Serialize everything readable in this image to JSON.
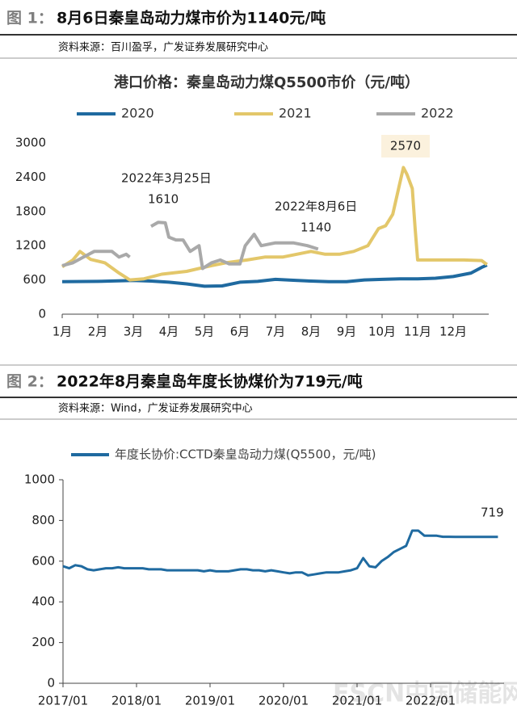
{
  "figures": [
    {
      "label": "图 1：",
      "title": "8月6日秦皇岛动力煤市价为1140元/吨",
      "source": "资料来源：百川盈孚，广发证券发展研究中心"
    },
    {
      "label": "图 2：",
      "title": "2022年8月秦皇岛年度长协煤价为719元/吨",
      "source": "资料来源：Wind，广发证券发展研究中心"
    }
  ],
  "watermark": "ESCN中国储能网",
  "chart_data": [
    {
      "type": "line",
      "title": "港口价格：秦皇岛动力煤Q5500市价（元/吨）",
      "xlim": [
        1,
        13
      ],
      "xticks": [
        {
          "value": 1,
          "label": "1月"
        },
        {
          "value": 2,
          "label": "2月"
        },
        {
          "value": 3,
          "label": "3月"
        },
        {
          "value": 4,
          "label": "4月"
        },
        {
          "value": 5,
          "label": "5月"
        },
        {
          "value": 6,
          "label": "6月"
        },
        {
          "value": 7,
          "label": "7月"
        },
        {
          "value": 8,
          "label": "8月"
        },
        {
          "value": 9,
          "label": "9月"
        },
        {
          "value": 10,
          "label": "10月"
        },
        {
          "value": 11,
          "label": "11月"
        },
        {
          "value": 12,
          "label": "12月"
        }
      ],
      "ylim": [
        0,
        3000
      ],
      "yticks": [
        0,
        600,
        1200,
        1800,
        2400,
        3000
      ],
      "series": [
        {
          "name": "2020",
          "color": "#1f6aa0",
          "x": [
            1,
            2,
            3,
            3.5,
            4,
            4.5,
            5,
            5.5,
            6,
            6.5,
            7,
            7.5,
            8,
            8.5,
            9,
            9.5,
            10,
            10.5,
            11,
            11.5,
            12,
            12.5,
            12.8,
            12.95
          ],
          "values": [
            570,
            575,
            590,
            580,
            560,
            530,
            490,
            495,
            560,
            575,
            610,
            595,
            580,
            570,
            570,
            600,
            610,
            620,
            620,
            630,
            660,
            720,
            820,
            860
          ]
        },
        {
          "name": "2021",
          "color": "#e3c76a",
          "x": [
            1,
            1.3,
            1.5,
            1.8,
            2.2,
            2.6,
            2.9,
            3.3,
            3.8,
            4.5,
            5.2,
            5.6,
            6.2,
            6.7,
            7.2,
            7.6,
            8.0,
            8.4,
            8.8,
            9.2,
            9.6,
            9.9,
            10.1,
            10.3,
            10.5,
            10.6,
            10.7,
            10.85,
            10.93,
            11.0,
            11.5,
            12.3,
            12.8,
            12.95
          ],
          "values": [
            830,
            950,
            1100,
            960,
            900,
            720,
            600,
            620,
            700,
            750,
            850,
            900,
            950,
            1000,
            1000,
            1050,
            1100,
            1050,
            1050,
            1100,
            1200,
            1500,
            1550,
            1750,
            2300,
            2570,
            2450,
            2200,
            1500,
            950,
            950,
            950,
            940,
            870
          ]
        },
        {
          "name": "2022",
          "color": "#a9a9a9",
          "x": [
            1,
            1.3,
            1.6,
            1.9,
            2.4,
            2.6,
            2.8,
            2.9,
            3.2,
            3.5,
            3.7,
            3.9,
            4.0,
            4.2,
            4.4,
            4.6,
            4.85,
            4.95,
            5.2,
            5.45,
            5.7,
            6.0,
            6.15,
            6.4,
            6.6,
            7.0,
            7.5,
            7.9,
            8.2
          ],
          "values": [
            850,
            900,
            1000,
            1100,
            1100,
            1000,
            1050,
            1000,
            null,
            1540,
            1610,
            1600,
            1350,
            1300,
            1300,
            1100,
            1200,
            800,
            900,
            950,
            880,
            880,
            1200,
            1400,
            1200,
            1250,
            1250,
            1200,
            1140
          ]
        }
      ],
      "annotations": [
        "2022年3月25日",
        "1610",
        "2022年8月6日",
        "1140",
        "2570"
      ]
    },
    {
      "type": "line",
      "xlim": [
        "2017/01",
        "2023/01"
      ],
      "xticks": [
        "2017/01",
        "2018/01",
        "2019/01",
        "2020/01",
        "2021/01",
        "2022/01"
      ],
      "ylim": [
        0,
        1000
      ],
      "yticks": [
        0,
        200,
        400,
        600,
        800,
        1000
      ],
      "series": [
        {
          "name": "年度长协价:CCTD秦皇岛动力煤(Q5500，元/吨)",
          "color": "#1f6aa0",
          "x": [
            "2017/01",
            "2017/02",
            "2017/03",
            "2017/04",
            "2017/05",
            "2017/06",
            "2017/07",
            "2017/08",
            "2017/09",
            "2017/10",
            "2017/11",
            "2017/12",
            "2018/01",
            "2018/02",
            "2018/03",
            "2018/04",
            "2018/05",
            "2018/06",
            "2018/07",
            "2018/08",
            "2018/09",
            "2018/10",
            "2018/11",
            "2018/12",
            "2019/01",
            "2019/02",
            "2019/03",
            "2019/04",
            "2019/05",
            "2019/06",
            "2019/07",
            "2019/08",
            "2019/09",
            "2019/10",
            "2019/11",
            "2019/12",
            "2020/01",
            "2020/02",
            "2020/03",
            "2020/04",
            "2020/05",
            "2020/06",
            "2020/07",
            "2020/08",
            "2020/09",
            "2020/10",
            "2020/11",
            "2020/12",
            "2021/01",
            "2021/02",
            "2021/03",
            "2021/04",
            "2021/05",
            "2021/06",
            "2021/07",
            "2021/08",
            "2021/09",
            "2021/10",
            "2021/11",
            "2021/12",
            "2022/01",
            "2022/02",
            "2022/03",
            "2022/04",
            "2022/05",
            "2022/06",
            "2022/07",
            "2022/08",
            "2022/09",
            "2022/10",
            "2022/11",
            "2022/12"
          ],
          "values": [
            575,
            565,
            580,
            575,
            560,
            555,
            560,
            565,
            565,
            570,
            565,
            565,
            565,
            565,
            560,
            560,
            560,
            555,
            555,
            555,
            555,
            555,
            555,
            550,
            555,
            550,
            550,
            550,
            555,
            560,
            560,
            555,
            555,
            550,
            555,
            550,
            545,
            540,
            545,
            545,
            530,
            535,
            540,
            545,
            545,
            545,
            550,
            555,
            565,
            615,
            575,
            570,
            600,
            620,
            645,
            660,
            675,
            750,
            750,
            725,
            725,
            725,
            720,
            720,
            719,
            719,
            719,
            719,
            719,
            719,
            719,
            719
          ]
        }
      ],
      "annotations": [
        "719"
      ]
    }
  ]
}
